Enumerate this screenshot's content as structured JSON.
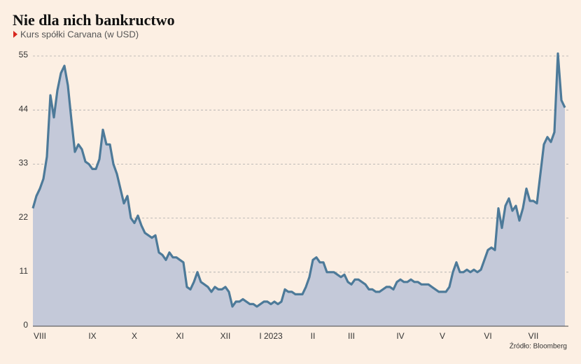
{
  "chart_data": {
    "type": "area",
    "title": "Nie dla nich bankructwo",
    "subtitle": "Kurs spółki Carvana (w USD)",
    "source": "Źródło: Bloomberg",
    "color": "#4d7a99",
    "fill": "#c4c9d9",
    "grid": true,
    "ylim": [
      0,
      55
    ],
    "yticks": [
      0,
      11,
      22,
      33,
      44,
      55
    ],
    "categories": [
      null,
      null,
      "VIII",
      null,
      null,
      null,
      null,
      null,
      null,
      null,
      null,
      null,
      null,
      null,
      null,
      null,
      null,
      "IX",
      null,
      null,
      null,
      null,
      null,
      null,
      null,
      null,
      null,
      null,
      null,
      "X",
      null,
      null,
      null,
      null,
      null,
      null,
      null,
      null,
      null,
      null,
      null,
      null,
      "XI",
      null,
      null,
      null,
      null,
      null,
      null,
      null,
      null,
      null,
      null,
      null,
      null,
      "XII",
      null,
      null,
      null,
      null,
      null,
      null,
      null,
      null,
      null,
      null,
      null,
      null,
      "I 2023",
      null,
      null,
      null,
      null,
      null,
      null,
      null,
      null,
      null,
      null,
      null,
      "II",
      null,
      null,
      null,
      null,
      null,
      null,
      null,
      null,
      null,
      null,
      "III",
      null,
      null,
      null,
      null,
      null,
      null,
      null,
      null,
      null,
      null,
      null,
      null,
      null,
      "IV",
      null,
      null,
      null,
      null,
      null,
      null,
      null,
      null,
      null,
      null,
      null,
      "V",
      null,
      null,
      null,
      null,
      null,
      null,
      null,
      null,
      null,
      null,
      null,
      null,
      "VI",
      null,
      null,
      null,
      null,
      null,
      null,
      null,
      null,
      null,
      null,
      null,
      null,
      "VII",
      null,
      null,
      null,
      null,
      null,
      null,
      null,
      null,
      null
    ],
    "values": [
      24,
      26.5,
      28,
      30,
      34.5,
      47,
      42.5,
      48,
      51.5,
      53,
      49,
      42,
      35.5,
      37,
      36,
      33.5,
      33,
      32,
      32,
      34,
      40,
      37,
      37,
      33,
      31,
      28,
      25,
      26.5,
      22,
      21,
      22.5,
      20.5,
      19,
      18.5,
      18,
      18.5,
      15,
      14.5,
      13.5,
      15,
      14,
      14,
      13.5,
      13,
      8,
      7.5,
      9,
      11,
      9,
      8.5,
      8,
      7,
      8,
      7.5,
      7.5,
      8,
      7,
      4,
      5,
      5,
      5.5,
      5,
      4.5,
      4.5,
      4,
      4.5,
      5,
      5,
      4.5,
      5,
      4.5,
      5,
      7.5,
      7,
      7,
      6.5,
      6.5,
      6.5,
      8,
      10,
      13.5,
      14,
      13,
      13,
      11,
      11,
      11,
      10.5,
      10,
      10.5,
      9,
      8.5,
      9.5,
      9.5,
      9,
      8.5,
      7.5,
      7.5,
      7,
      7,
      7.5,
      8,
      8,
      7.5,
      9,
      9.5,
      9,
      9,
      9.5,
      9,
      9,
      8.5,
      8.5,
      8.5,
      8,
      7.5,
      7,
      7,
      7,
      8,
      11,
      13,
      11,
      11,
      11.5,
      11,
      11.5,
      11,
      11.5,
      13.5,
      15.5,
      16,
      15.5,
      24,
      20,
      24.5,
      26,
      23.5,
      24.5,
      21.5,
      24,
      28,
      25.5,
      25.5,
      25,
      31,
      37,
      38.5,
      37.5,
      39.5,
      55.5,
      46,
      44.5
    ]
  }
}
